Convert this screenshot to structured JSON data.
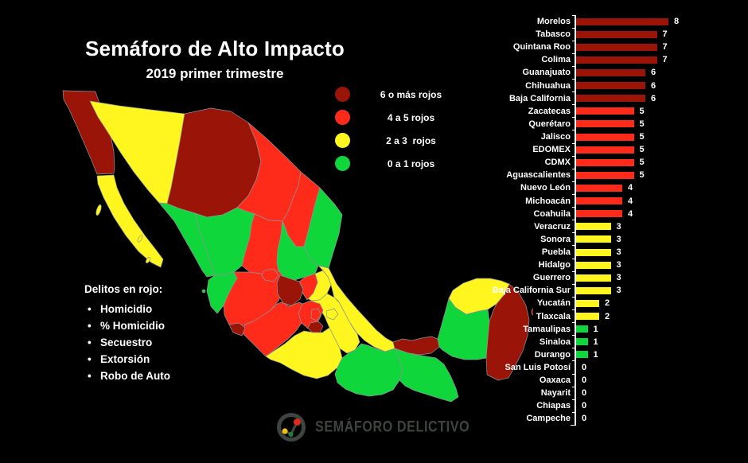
{
  "title": "Semáforo de Alto Impacto",
  "subtitle": "2019 primer trimestre",
  "colors": {
    "dark_red": "#9A1508",
    "red": "#FE2B1B",
    "yellow": "#FFF61F",
    "green": "#0FD73B"
  },
  "legend": {
    "items": [
      {
        "level": "dark_red",
        "label": "6 o más rojos"
      },
      {
        "level": "red",
        "label": "4 a 5 rojos"
      },
      {
        "level": "yellow",
        "label": "2 a 3  rojos"
      },
      {
        "level": "green",
        "label": "0 a 1 rojos"
      }
    ]
  },
  "delitos": {
    "title": "Delitos en rojo:",
    "bullet": "•",
    "items": [
      "Homicidio",
      "% Homicidio",
      "Secuestro",
      "Extorsión",
      "Robo de Auto"
    ]
  },
  "logo": {
    "text": "SEMÁFORO DELICTIVO"
  },
  "chart_data": {
    "type": "bar",
    "orientation": "horizontal",
    "title": "",
    "xlabel": "",
    "ylabel": "",
    "xlim": [
      0,
      8
    ],
    "grid": false,
    "legend_position": "none",
    "value_labels": true,
    "states": [
      {
        "name": "Morelos",
        "value": 8,
        "level": "dark_red"
      },
      {
        "name": "Tabasco",
        "value": 7,
        "level": "dark_red"
      },
      {
        "name": "Quintana Roo",
        "value": 7,
        "level": "dark_red"
      },
      {
        "name": "Colima",
        "value": 7,
        "level": "dark_red"
      },
      {
        "name": "Guanajuato",
        "value": 6,
        "level": "dark_red"
      },
      {
        "name": "Chihuahua",
        "value": 6,
        "level": "dark_red"
      },
      {
        "name": "Baja California",
        "value": 6,
        "level": "dark_red"
      },
      {
        "name": "Zacatecas",
        "value": 5,
        "level": "red"
      },
      {
        "name": "Querétaro",
        "value": 5,
        "level": "red"
      },
      {
        "name": "Jalisco",
        "value": 5,
        "level": "red"
      },
      {
        "name": "EDOMEX",
        "value": 5,
        "level": "red"
      },
      {
        "name": "CDMX",
        "value": 5,
        "level": "red"
      },
      {
        "name": "Aguascalientes",
        "value": 5,
        "level": "red"
      },
      {
        "name": "Nuevo León",
        "value": 4,
        "level": "red"
      },
      {
        "name": "Michoacán",
        "value": 4,
        "level": "red"
      },
      {
        "name": "Coahuila",
        "value": 4,
        "level": "red"
      },
      {
        "name": "Veracruz",
        "value": 3,
        "level": "yellow"
      },
      {
        "name": "Sonora",
        "value": 3,
        "level": "yellow"
      },
      {
        "name": "Puebla",
        "value": 3,
        "level": "yellow"
      },
      {
        "name": "Hidalgo",
        "value": 3,
        "level": "yellow"
      },
      {
        "name": "Guerrero",
        "value": 3,
        "level": "yellow"
      },
      {
        "name": "Baja California Sur",
        "value": 3,
        "level": "yellow"
      },
      {
        "name": "Yucatán",
        "value": 2,
        "level": "yellow"
      },
      {
        "name": "Tlaxcala",
        "value": 2,
        "level": "yellow"
      },
      {
        "name": "Tamaulipas",
        "value": 1,
        "level": "green"
      },
      {
        "name": "Sinaloa",
        "value": 1,
        "level": "green"
      },
      {
        "name": "Durango",
        "value": 1,
        "level": "green"
      },
      {
        "name": "San Luis Potosí",
        "value": 0,
        "level": "green"
      },
      {
        "name": "Oaxaca",
        "value": 0,
        "level": "green"
      },
      {
        "name": "Nayarit",
        "value": 0,
        "level": "green"
      },
      {
        "name": "Chiapas",
        "value": 0,
        "level": "green"
      },
      {
        "name": "Campeche",
        "value": 0,
        "level": "green"
      }
    ]
  }
}
